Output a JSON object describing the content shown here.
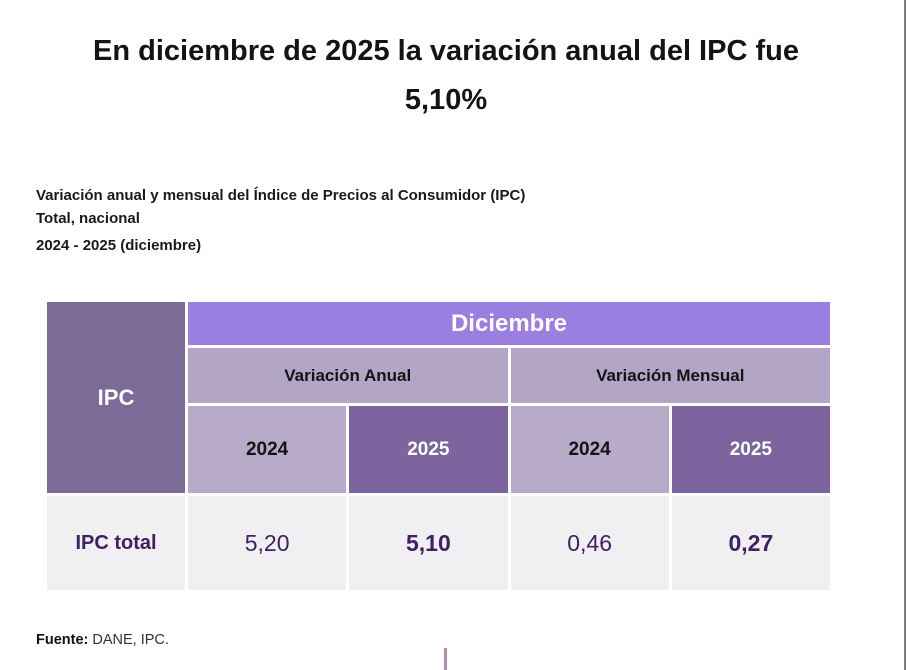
{
  "header": {
    "title_line1": "En diciembre de 2025 la variación anual del IPC fue",
    "title_line2": "5,10%"
  },
  "subtitle": {
    "line1": "Variación anual y mensual del Índice de Precios al Consumidor (IPC)",
    "line2": "Total, nacional",
    "line3": "2024 - 2025 (diciembre)"
  },
  "table": {
    "corner_header": "IPC",
    "month_header": "Diciembre",
    "group_headers": [
      "Variación Anual",
      "Variación Mensual"
    ],
    "year_headers": [
      "2024",
      "2025",
      "2024",
      "2025"
    ],
    "row_label": "IPC total",
    "values": [
      "5,20",
      "5,10",
      "0,46",
      "0,27"
    ]
  },
  "footer": {
    "source_label": "Fuente:",
    "source_text": " DANE, IPC."
  },
  "colors": {
    "month_band": "#9b7fe0",
    "corner_cell": "#7c6a97",
    "year_dark_cell": "#7d649e",
    "group_band": "#b2a5c6",
    "year_light_cell": "#b8abca",
    "data_row_bg": "#f0eff2",
    "value_text": "#3e2063",
    "title_text": "#141414",
    "page_border": "#7f7f7f",
    "cursor_artifact": "#b58ab4"
  },
  "chart_data": {
    "type": "table",
    "title": "Variación anual y mensual del Índice de Precios al Consumidor (IPC), Total nacional, 2024 - 2025 (diciembre)",
    "columns": [
      "IPC",
      "Variación Anual 2024",
      "Variación Anual 2025",
      "Variación Mensual 2024",
      "Variación Mensual 2025"
    ],
    "rows": [
      [
        "IPC total",
        5.2,
        5.1,
        0.46,
        0.27
      ]
    ],
    "period": "Diciembre"
  }
}
